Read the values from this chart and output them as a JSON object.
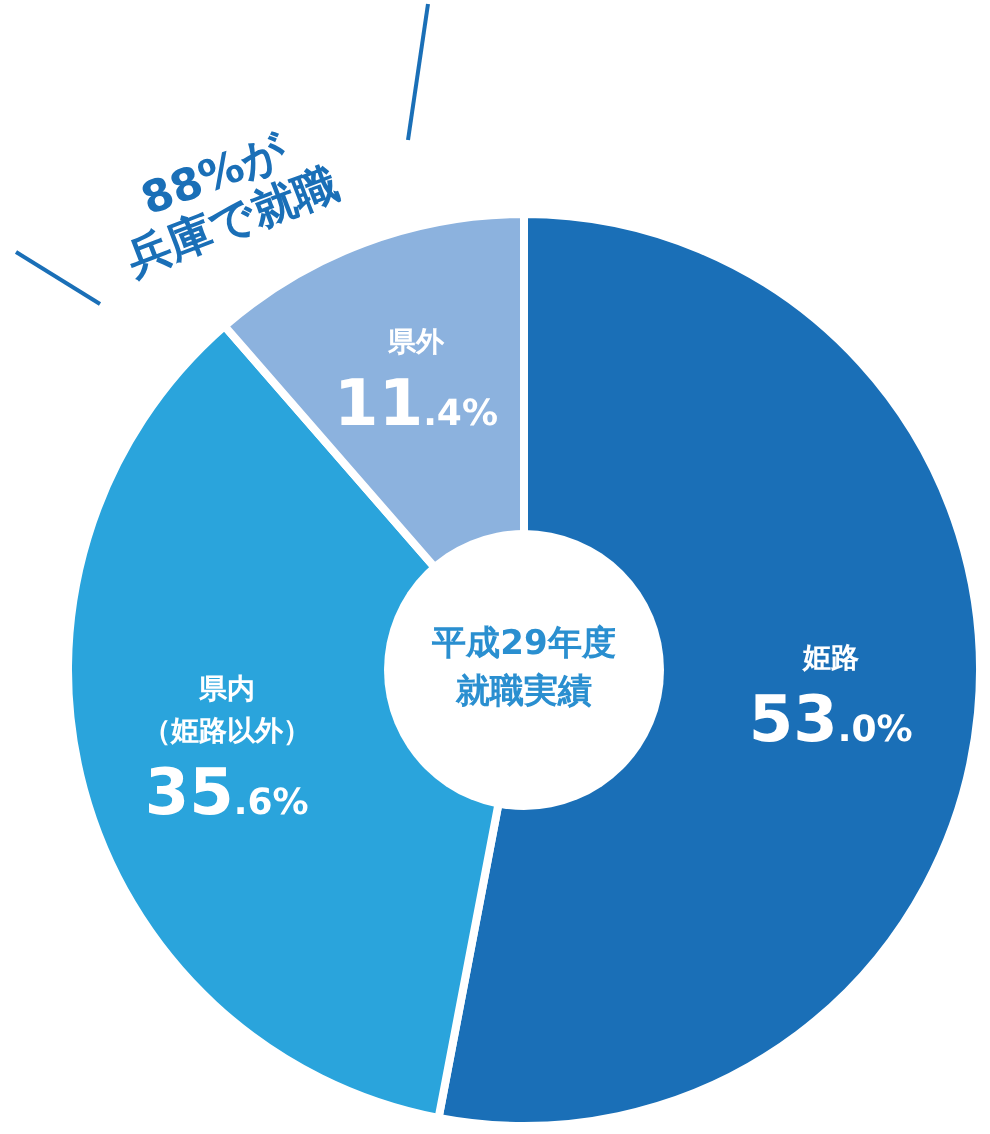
{
  "chart_data": {
    "type": "donut",
    "title": "平成29年度就職実績",
    "categories": [
      "姫路",
      "県内（姫路以外）",
      "県外"
    ],
    "values": [
      53.0,
      35.6,
      11.4
    ],
    "colors": [
      "#1a6fb7",
      "#2aa4dc",
      "#8cb2de"
    ],
    "value_labels": [
      "53.0%",
      "35.6%",
      "11.4%"
    ],
    "annotations": [
      "88%が",
      "兵庫で就職"
    ]
  }
}
